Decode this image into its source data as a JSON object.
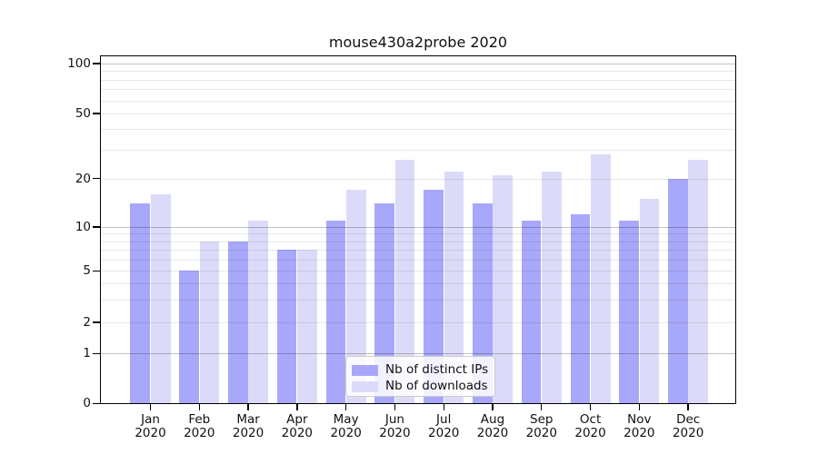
{
  "title": "mouse430a2probe 2020",
  "chart_data": {
    "type": "bar",
    "title": "mouse430a2probe 2020",
    "categories": [
      "Jan 2020",
      "Feb 2020",
      "Mar 2020",
      "Apr 2020",
      "May 2020",
      "Jun 2020",
      "Jul 2020",
      "Aug 2020",
      "Sep 2020",
      "Oct 2020",
      "Nov 2020",
      "Dec 2020"
    ],
    "category_month_labels": [
      "Jan",
      "Feb",
      "Mar",
      "Apr",
      "May",
      "Jun",
      "Jul",
      "Aug",
      "Sep",
      "Oct",
      "Nov",
      "Dec"
    ],
    "category_year_label": "2020",
    "series": [
      {
        "name": "Nb of distinct IPs",
        "color": "#a8a8fa",
        "values": [
          14,
          5,
          8,
          7,
          11,
          14,
          17,
          14,
          11,
          12,
          11,
          20
        ]
      },
      {
        "name": "Nb of downloads",
        "color": "#dbdbf9",
        "values": [
          16,
          8,
          11,
          7,
          17,
          26,
          22,
          21,
          22,
          28,
          15,
          26
        ]
      }
    ],
    "yaxis": {
      "scale": "symlog",
      "tick_labels": [
        "0",
        "1",
        "2",
        "5",
        "10",
        "20",
        "50",
        "100"
      ],
      "tick_values": [
        0,
        1,
        2,
        5,
        10,
        20,
        50,
        100
      ],
      "major_grid_values": [
        1,
        10,
        100
      ],
      "minor_grid_values": [
        2,
        3,
        4,
        5,
        6,
        7,
        8,
        9,
        20,
        30,
        40,
        50,
        60,
        70,
        80,
        90
      ],
      "range": [
        0,
        113
      ]
    },
    "xlabel": "",
    "ylabel": "",
    "grid": "on",
    "legend": {
      "position": "lower center",
      "entries": [
        "Nb of distinct IPs",
        "Nb of downloads"
      ]
    }
  }
}
